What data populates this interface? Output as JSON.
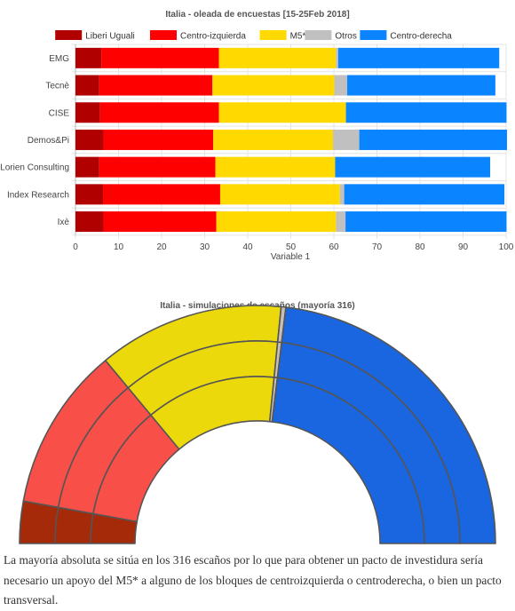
{
  "chart_data": [
    {
      "type": "bar",
      "orientation": "horizontal",
      "stacked": true,
      "title": "Italia - oleada de encuestas [15-25Feb 2018]",
      "xlabel": "Variable 1",
      "ylabel": "",
      "xlim": [
        0,
        100
      ],
      "xticks": [
        "0",
        "10",
        "20",
        "30",
        "40",
        "50",
        "60",
        "70",
        "80",
        "90",
        "100"
      ],
      "grid": true,
      "legend": "top",
      "categories": [
        "EMG",
        "Tecnè",
        "CISE",
        "Demos&Pi",
        "Lorien Consulting",
        "Index Research",
        "Ixè"
      ],
      "series": [
        {
          "name": "Liberi Uguali",
          "color": "#b00000",
          "values": [
            6.0,
            5.5,
            5.7,
            6.5,
            5.5,
            6.4,
            6.5
          ]
        },
        {
          "name": "Centro-izquierda",
          "color": "#ff0000",
          "values": [
            27.3,
            26.3,
            27.6,
            25.5,
            27.0,
            27.2,
            26.2
          ]
        },
        {
          "name": "M5*",
          "color": "#ffd900",
          "values": [
            27.2,
            28.3,
            29.5,
            27.8,
            27.8,
            27.8,
            27.8
          ]
        },
        {
          "name": "Otros",
          "color": "#c0c0c0",
          "values": [
            0.5,
            3.0,
            0.0,
            6.1,
            0.0,
            1.0,
            2.2
          ]
        },
        {
          "name": "Centro-derecha",
          "color": "#0a84ff",
          "values": [
            37.4,
            34.4,
            37.3,
            34.3,
            36.0,
            37.2,
            37.4
          ]
        }
      ]
    },
    {
      "type": "pie",
      "variant": "semicircle-parliament",
      "title": "Italia - simulaciones de escaños (mayoría 316)",
      "rings": 3,
      "categories": [
        "Liberi Uguali",
        "Centro-izquierda",
        "M5*",
        "Otros",
        "Centro-derecha"
      ],
      "colors": [
        "#a52a0a",
        "#f85048",
        "#ecd90c",
        "#c8c0b8",
        "#1a66e0"
      ],
      "values": [
        36,
        140,
        159,
        4,
        291
      ]
    }
  ],
  "caption": "La mayoría absoluta se sitúa en los 316 escaños por lo que para obtener un pacto de investidura sería necesario un apoyo del M5* a alguno de los bloques de centroizquierda o centroderecha, o bien un pacto transversal."
}
